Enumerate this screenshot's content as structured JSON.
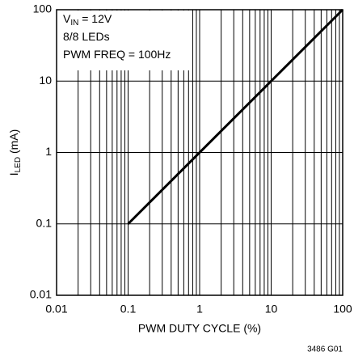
{
  "chart_data": {
    "type": "line",
    "annotations": [
      {
        "main": "V",
        "sub": "IN",
        "rest": " = 12V"
      },
      {
        "main": "8/8 LEDs"
      },
      {
        "main": "PWM FREQ = 100Hz"
      }
    ],
    "xlabel": "PWM DUTY CYCLE (%)",
    "ylabel": {
      "main": "I",
      "sub": "LED",
      "rest": " (mA)"
    },
    "footnote": "3486 G01",
    "x": [
      0.1,
      100
    ],
    "series": [
      {
        "color": "#000000",
        "values": [
          0.1,
          100
        ]
      }
    ],
    "xlim": [
      0.01,
      100
    ],
    "ylim": [
      0.01,
      100
    ],
    "xticks": [
      0.01,
      0.1,
      1,
      10,
      100
    ],
    "yticks": [
      0.01,
      0.1,
      1,
      10,
      100
    ],
    "xscale": "log",
    "yscale": "log",
    "grid": true,
    "x_minor_grid": true
  }
}
